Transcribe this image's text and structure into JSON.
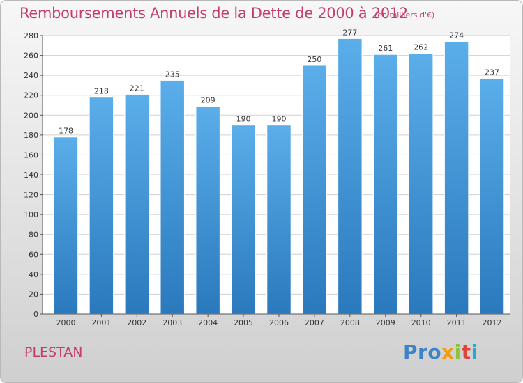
{
  "header": {
    "title": "Remboursements Annuels de la Dette de 2000 à 2012",
    "subtitle": "(en milliers d'€)"
  },
  "footer": {
    "commune": "PLESTAN",
    "logo_letters": [
      "Pro",
      "x",
      "i",
      "t",
      "i"
    ]
  },
  "colors": {
    "title": "#c43e6c",
    "bar_top": "#5aaee9",
    "bar_bottom": "#2a79bd",
    "grid": "#d0d0d0"
  },
  "chart_data": {
    "type": "bar",
    "title": "Remboursements Annuels de la Dette de 2000 à 2012",
    "subtitle": "(en milliers d'€)",
    "categories": [
      "2000",
      "2001",
      "2002",
      "2003",
      "2004",
      "2005",
      "2006",
      "2007",
      "2008",
      "2009",
      "2010",
      "2011",
      "2012"
    ],
    "values": [
      178,
      218,
      221,
      235,
      209,
      190,
      190,
      250,
      277,
      261,
      262,
      274,
      237
    ],
    "xlabel": "",
    "ylabel": "",
    "ylim": [
      0,
      280
    ],
    "yticks": [
      0,
      20,
      40,
      60,
      80,
      100,
      120,
      140,
      160,
      180,
      200,
      220,
      240,
      260,
      280
    ],
    "grid": true,
    "data_labels": true
  }
}
